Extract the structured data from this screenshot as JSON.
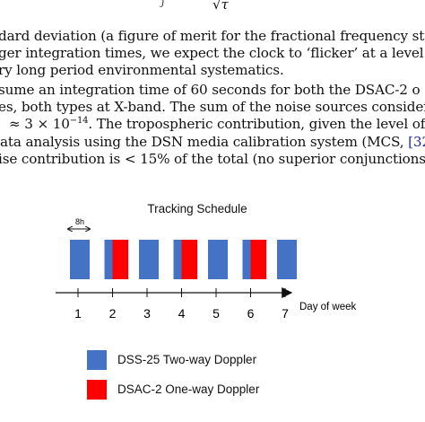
{
  "text_block": {
    "formula_tail": "√τ",
    "formula_sub": "j",
    "lines": [
      "dard deviation (a figure of merit for the fractional frequency st",
      "ger integration times, we expect the clock to ‘flicker’ at a level c",
      "ry long period environmental systematics.",
      "sume an integration time of 60 seconds for both the DSAC-2 o",
      "es, both types at X-band. The sum of the noise sources consider",
      "≈ 3 × 10",
      "ata analysis using the DSN media calibration system (MCS, ",
      "ise contribution is < 15% of the total (no superior conjunctions"
    ],
    "line6_exponent": "−14",
    "line6_tail": ". The tropospheric contribution, given the level of p",
    "citation": "[32]",
    "line7_tail": ") "
  },
  "figure": {
    "title": "Tracking Schedule",
    "duration_label": "8h",
    "x_axis_label": "Day of week",
    "legend": [
      {
        "label": "DSS-25 Two-way Doppler",
        "color": "#4472c4"
      },
      {
        "label": "DSAC-2 One-way Doppler",
        "color": "#ff0000"
      }
    ]
  },
  "chart_data": {
    "type": "bar",
    "title": "Tracking Schedule",
    "xlabel": "Day of week",
    "categories": [
      "1",
      "2",
      "3",
      "4",
      "5",
      "6",
      "7"
    ],
    "series": [
      {
        "name": "DSS-25 Two-way Doppler",
        "color": "#4472c4",
        "tracking_hours": [
          8,
          8,
          8,
          8,
          8,
          8,
          8
        ]
      },
      {
        "name": "DSAC-2 One-way Doppler",
        "color": "#ff0000",
        "tracking_hours": [
          0,
          4,
          0,
          4,
          0,
          4,
          0
        ]
      }
    ],
    "pass_duration_hours": 8
  }
}
